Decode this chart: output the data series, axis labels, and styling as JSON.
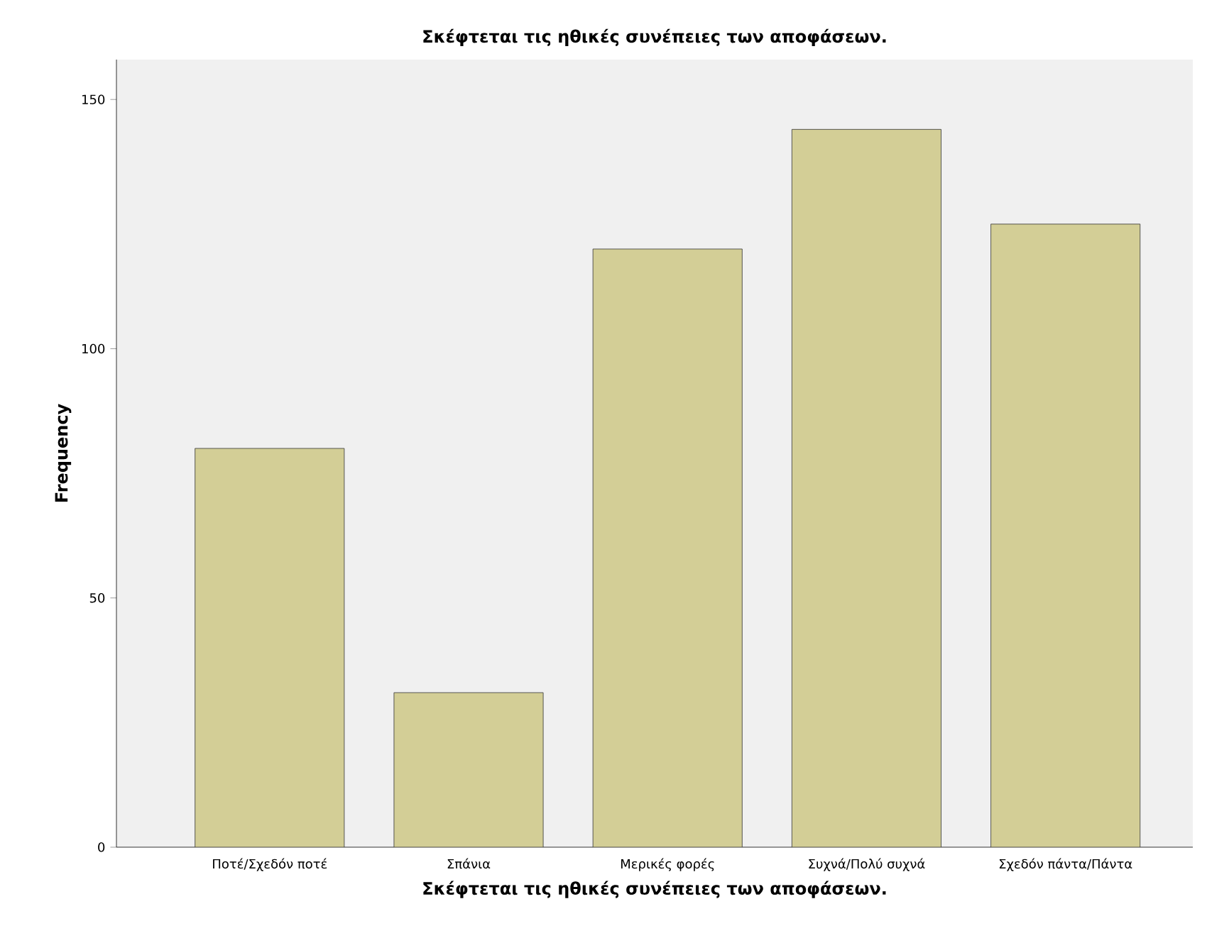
{
  "chart_data": {
    "type": "bar",
    "title": "Σκέφτεται τις ηθικές συνέπειες των αποφάσεων.",
    "xlabel": "Σκέφτεται τις ηθικές συνέπειες των αποφάσεων.",
    "ylabel": "Frequency",
    "categories": [
      "Ποτέ/Σχεδόν ποτέ",
      "Σπάνια",
      "Μερικές φορές",
      "Συχνά/Πολύ συχνά",
      "Σχεδόν πάντα/Πάντα"
    ],
    "values": [
      80,
      31,
      120,
      144,
      125
    ],
    "color": "#d3ce96",
    "ylim": [
      0,
      158
    ],
    "yticks": [
      0,
      50,
      100,
      150
    ],
    "grid": false
  }
}
